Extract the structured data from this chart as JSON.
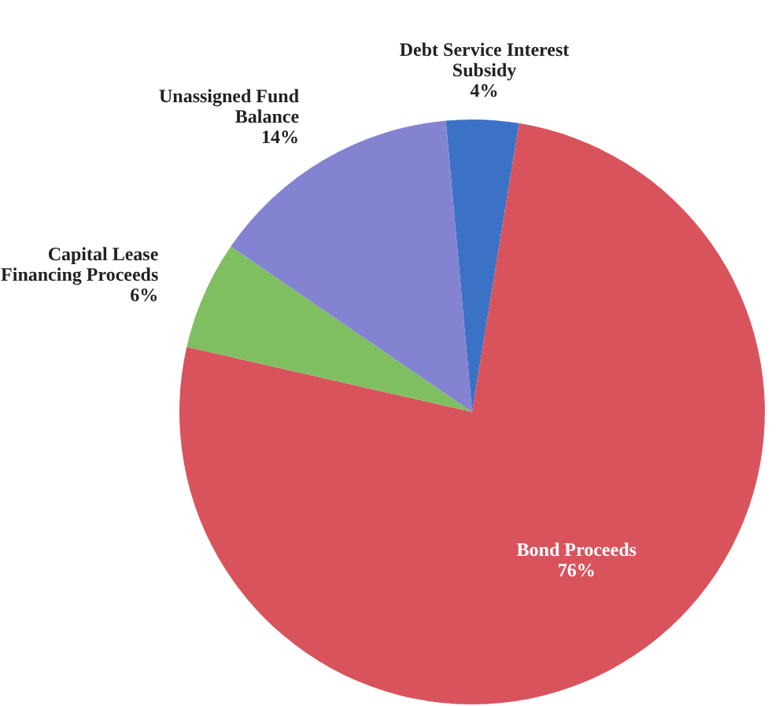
{
  "chart_data": {
    "type": "pie",
    "categories": [
      "Debt Service Interest Subsidy",
      "Bond Proceeds",
      "Capital Lease Financing Proceeds",
      "Unassigned Fund Balance"
    ],
    "values": [
      4,
      76,
      6,
      14
    ],
    "colors": [
      "#3b72c6",
      "#d9535d",
      "#7fbf62",
      "#8483d2"
    ],
    "value_labels": [
      "4%",
      "76%",
      "6%",
      "14%"
    ]
  }
}
